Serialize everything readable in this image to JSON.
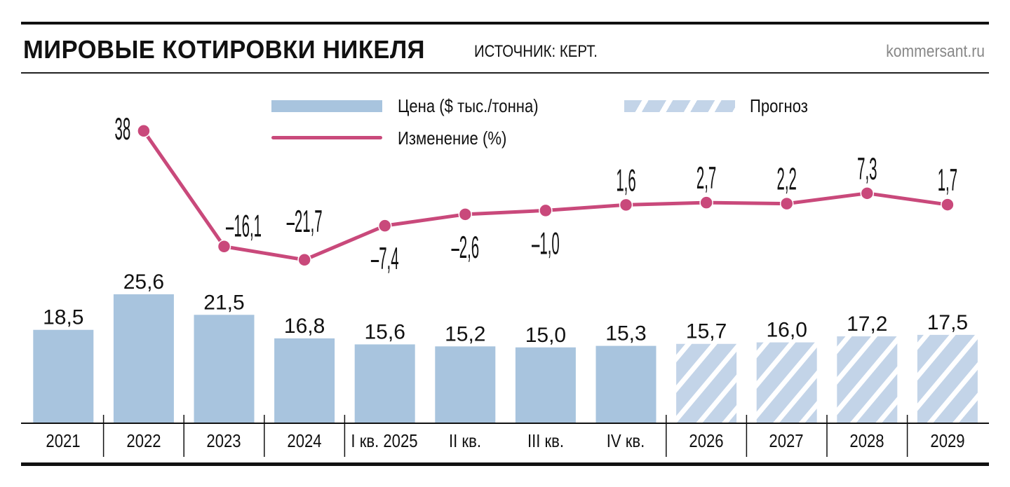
{
  "header": {
    "title": "МИРОВЫЕ КОТИРОВКИ НИКЕЛЯ",
    "source": "ИСТОЧНИК: КЕРТ.",
    "site": "kommersant.ru"
  },
  "legend": {
    "price": "Цена ($ тыс./тонна)",
    "forecast": "Прогноз",
    "change": "Изменение (%)"
  },
  "colors": {
    "bar": "#a8c4de",
    "forecast_bar": "#c3d4e8",
    "line": "#c9497b",
    "text": "#111111",
    "site": "#888888"
  },
  "chart_data": {
    "type": "bar",
    "title": "МИРОВЫЕ КОТИРОВКИ НИКЕЛЯ",
    "subtitle": "ИСТОЧНИК: КЕРТ.",
    "xlabel": "",
    "ylabel": "Цена ($ тыс./тонна)",
    "categories": [
      "2021",
      "2022",
      "2023",
      "2024",
      "I кв. 2025",
      "II кв.",
      "III кв.",
      "IV кв.",
      "2026",
      "2027",
      "2028",
      "2029"
    ],
    "forecast_flags": [
      false,
      false,
      false,
      false,
      false,
      false,
      false,
      false,
      true,
      true,
      true,
      true
    ],
    "series": [
      {
        "name": "Цена ($ тыс./тонна)",
        "type": "bar",
        "values": [
          18.5,
          25.6,
          21.5,
          16.8,
          15.6,
          15.2,
          15.0,
          15.3,
          15.7,
          16.0,
          17.2,
          17.5
        ],
        "labels": [
          "18,5",
          "25,6",
          "21,5",
          "16,8",
          "15,6",
          "15,2",
          "15,0",
          "15,3",
          "15,7",
          "16,0",
          "17,2",
          "17,5"
        ]
      },
      {
        "name": "Изменение (%)",
        "type": "line",
        "values": [
          null,
          38,
          -16.1,
          -21.7,
          -7.4,
          -2.6,
          -1.0,
          1.6,
          2.7,
          2.2,
          7.3,
          1.7
        ],
        "labels": [
          "",
          "38",
          "–16,1",
          "–21,7",
          "–7,4",
          "–2,6",
          "–1,0",
          "1,6",
          "2,7",
          "2,2",
          "7,3",
          "1,7"
        ]
      }
    ],
    "legend": [
      "Цена ($ тыс./тонна)",
      "Прогноз",
      "Изменение (%)"
    ],
    "legend_position": "top",
    "grid": false,
    "ylim": [
      0,
      30
    ]
  }
}
